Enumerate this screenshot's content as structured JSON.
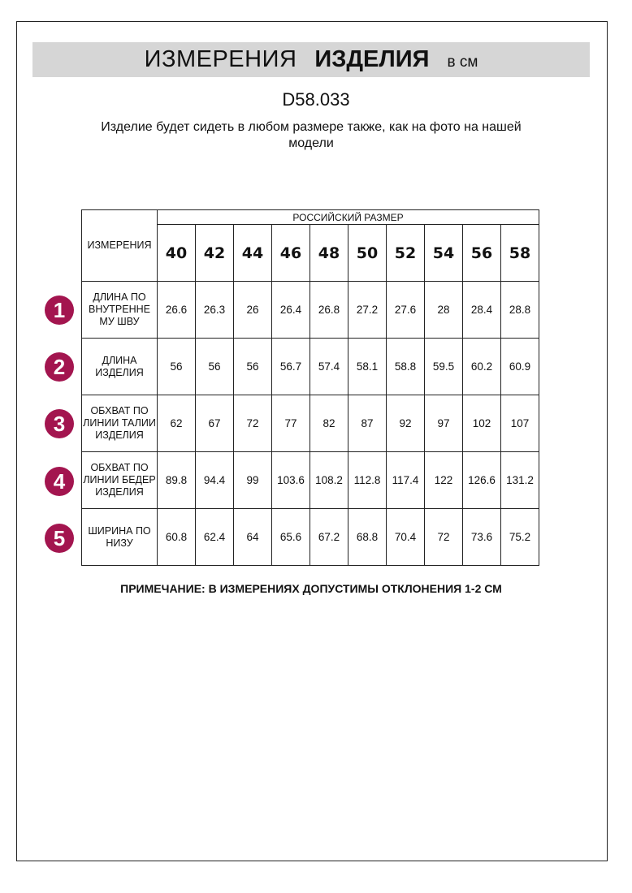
{
  "header": {
    "title_regular": "ИЗМЕРЕНИЯ",
    "title_bold": "ИЗДЕЛИЯ",
    "unit": "в см"
  },
  "product_code": "D58.033",
  "subtitle": "Изделие будет сидеть в любом размере также, как на фото на нашей модели",
  "table": {
    "label_header": "ИЗМЕРЕНИЯ",
    "size_group_header": "РОССИЙСКИЙ РАЗМЕР",
    "sizes": [
      "40",
      "42",
      "44",
      "46",
      "48",
      "50",
      "52",
      "54",
      "56",
      "58"
    ],
    "badge_color": "#a3154f",
    "rows": [
      {
        "num": "1",
        "label": "ДЛИНА ПО ВНУТРЕННЕ МУ ШВУ",
        "values": [
          "26.6",
          "26.3",
          "26",
          "26.4",
          "26.8",
          "27.2",
          "27.6",
          "28",
          "28.4",
          "28.8"
        ]
      },
      {
        "num": "2",
        "label": "ДЛИНА ИЗДЕЛИЯ",
        "values": [
          "56",
          "56",
          "56",
          "56.7",
          "57.4",
          "58.1",
          "58.8",
          "59.5",
          "60.2",
          "60.9"
        ]
      },
      {
        "num": "3",
        "label": "ОБХВАТ ПО ЛИНИИ ТАЛИИ ИЗДЕЛИЯ",
        "values": [
          "62",
          "67",
          "72",
          "77",
          "82",
          "87",
          "92",
          "97",
          "102",
          "107"
        ]
      },
      {
        "num": "4",
        "label": "ОБХВАТ ПО ЛИНИИ БЕДЕР ИЗДЕЛИЯ",
        "values": [
          "89.8",
          "94.4",
          "99",
          "103.6",
          "108.2",
          "112.8",
          "117.4",
          "122",
          "126.6",
          "131.2"
        ]
      },
      {
        "num": "5",
        "label": "ШИРИНА ПО НИЗУ",
        "values": [
          "60.8",
          "62.4",
          "64",
          "65.6",
          "67.2",
          "68.8",
          "70.4",
          "72",
          "73.6",
          "75.2"
        ]
      }
    ]
  },
  "note": "ПРИМЕЧАНИЕ: В ИЗМЕРЕНИЯХ ДОПУСТИМЫ ОТКЛОНЕНИЯ 1-2 СМ"
}
